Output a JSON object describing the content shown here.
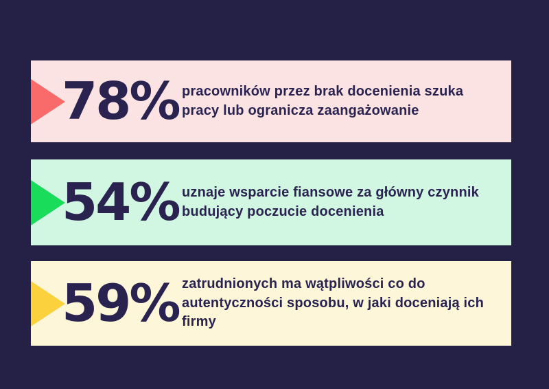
{
  "page": {
    "background": "#252046",
    "text_color": "#2A2350"
  },
  "stats": [
    {
      "value": "78%",
      "description": "pracowników przez brak docenienia szuka pracy lub ogranicza zaangażowanie",
      "bar_color": "#FBE3E3",
      "arrow_color": "#F96B6B"
    },
    {
      "value": "54%",
      "description": "uznaje wsparcie fiansowe za główny czynnik budujący poczucie docenienia",
      "bar_color": "#D1F7E2",
      "arrow_color": "#1ADC5B"
    },
    {
      "value": "59%",
      "description": "zatrudnionych ma wątpliwości co do autentyczności sposobu, w jaki doceniają ich firmy",
      "bar_color": "#FDF6D8",
      "arrow_color": "#FBD23E"
    }
  ],
  "chart_data": {
    "type": "bar",
    "categories": [
      "pracowników przez brak docenienia szuka pracy lub ogranicza zaangażowanie",
      "uznaje wsparcie fiansowe za główny czynnik budujący poczucie docenienia",
      "zatrudnionych ma wątpliwości co do autentyczności sposobu, w jaki doceniają ich firmy"
    ],
    "values": [
      78,
      54,
      59
    ],
    "title": "",
    "xlabel": "",
    "ylabel": "",
    "unit": "%",
    "legend": false,
    "orientation": "horizontal",
    "bar_colors": [
      "#FBE3E3",
      "#D1F7E2",
      "#FDF6D8"
    ],
    "accent_colors": [
      "#F96B6B",
      "#1ADC5B",
      "#FBD23E"
    ]
  }
}
